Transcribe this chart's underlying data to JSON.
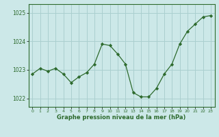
{
  "x": [
    0,
    1,
    2,
    3,
    4,
    5,
    6,
    7,
    8,
    9,
    10,
    11,
    12,
    13,
    14,
    15,
    16,
    17,
    18,
    19,
    20,
    21,
    22,
    23
  ],
  "y": [
    1022.85,
    1023.05,
    1022.95,
    1023.05,
    1022.85,
    1022.55,
    1022.75,
    1022.9,
    1023.2,
    1023.9,
    1023.85,
    1023.55,
    1023.2,
    1022.2,
    1022.05,
    1022.05,
    1022.35,
    1022.85,
    1023.2,
    1023.9,
    1024.35,
    1024.6,
    1024.85,
    1024.9
  ],
  "line_color": "#2d6a2d",
  "marker_color": "#2d6a2d",
  "bg_color": "#cce8e8",
  "grid_color": "#aacfcf",
  "axis_color": "#2d6a2d",
  "label_color": "#2d6a2d",
  "xlabel": "Graphe pression niveau de la mer (hPa)",
  "yticks": [
    1022,
    1023,
    1024,
    1025
  ],
  "ylim": [
    1021.7,
    1025.3
  ],
  "xlim": [
    -0.5,
    23.5
  ]
}
